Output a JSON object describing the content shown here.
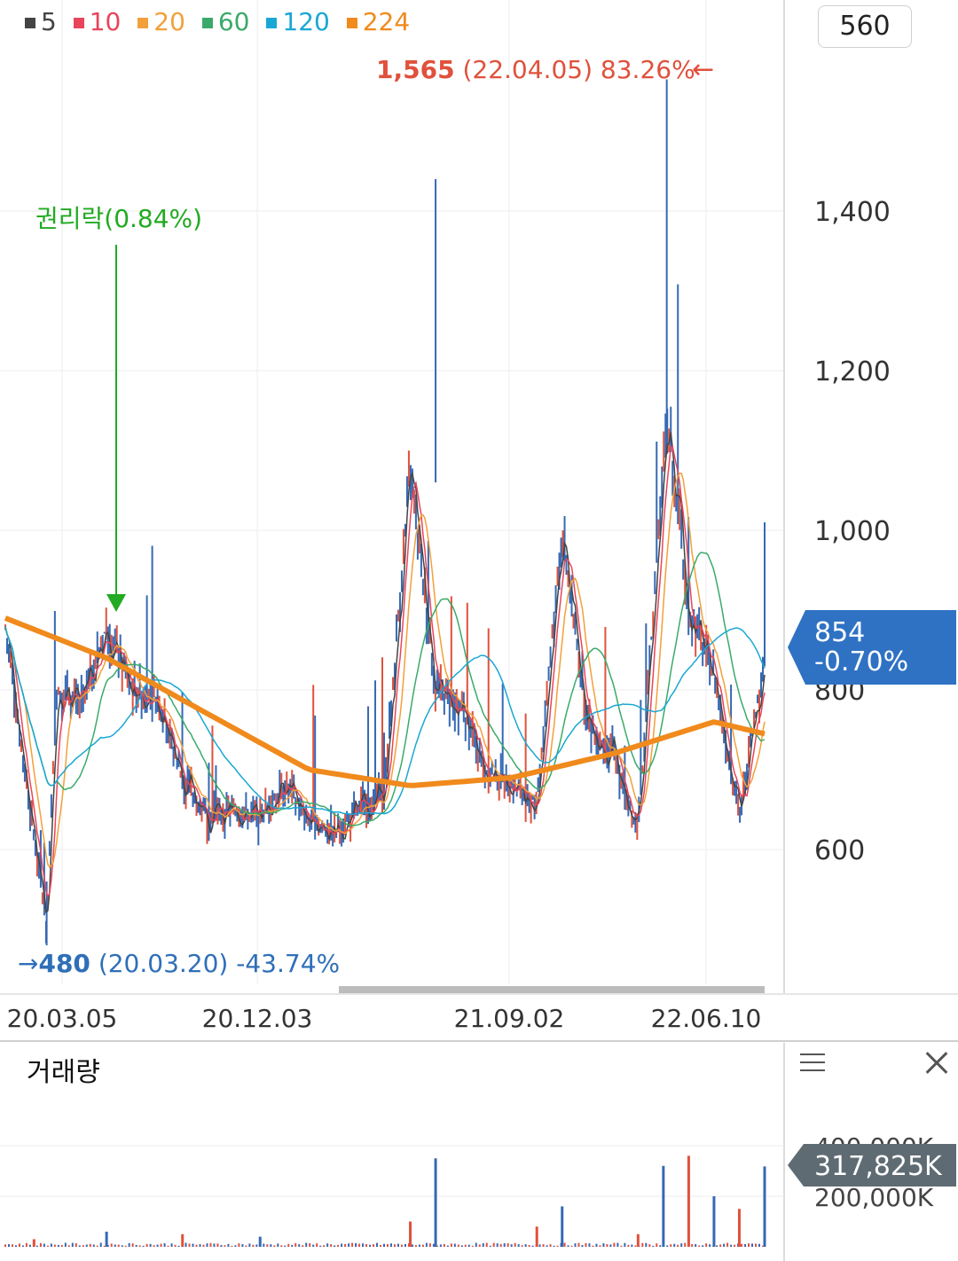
{
  "legend": [
    {
      "label": "5",
      "color": "#444444"
    },
    {
      "label": "10",
      "color": "#e8455b"
    },
    {
      "label": "20",
      "color": "#f2a03a"
    },
    {
      "label": "60",
      "color": "#3aaa6a"
    },
    {
      "label": "120",
      "color": "#1aa7d4"
    },
    {
      "label": "224",
      "color": "#f08a1c"
    }
  ],
  "zoom_value": "560",
  "annotations": {
    "high": {
      "price": "1,565",
      "rest": " (22.04.05) 83.26%",
      "arrow": "←"
    },
    "low": {
      "arrow": "→",
      "price": "480",
      "rest": " (20.03.20) -43.74%"
    },
    "event": {
      "label": "권리락(0.84%)"
    }
  },
  "current": {
    "price": "854",
    "change": "-0.70%"
  },
  "volume_panel": {
    "title": "거래량",
    "current": "317,825K",
    "menu_icon": "hamburger-icon",
    "close_icon": "close-icon"
  },
  "colors": {
    "candle_up": "#e0513c",
    "candle_down": "#3569b5",
    "current_badge": "#2f72c4",
    "volume_badge": "#5f6b73"
  },
  "chart_data": [
    {
      "type": "line",
      "x_ticks": [
        "20.03.05",
        "20.12.03",
        "21.09.02",
        "22.06.10"
      ],
      "y_ticks": [
        600,
        800,
        1000,
        1200,
        1400
      ],
      "ylim": [
        450,
        1600
      ],
      "series": [
        {
          "name": "5",
          "x": [
            "20.02",
            "20.03.20",
            "20.04",
            "20.05",
            "20.06",
            "20.07",
            "20.08",
            "20.09",
            "20.10",
            "20.11",
            "20.12",
            "21.01",
            "21.02",
            "21.03",
            "21.04",
            "21.05",
            "21.06",
            "21.07",
            "21.08",
            "21.09",
            "21.10",
            "21.11",
            "21.12",
            "22.01",
            "22.02",
            "22.03",
            "22.04.05",
            "22.05",
            "22.06",
            "22.07",
            "22.08"
          ],
          "values": [
            880,
            500,
            800,
            780,
            880,
            800,
            790,
            690,
            640,
            650,
            640,
            680,
            640,
            620,
            650,
            680,
            1080,
            800,
            780,
            700,
            680,
            660,
            1000,
            760,
            720,
            620,
            1150,
            900,
            820,
            640,
            840
          ]
        },
        {
          "name": "224",
          "x": [
            "20.02",
            "20.06",
            "20.10",
            "21.02",
            "21.06",
            "21.10",
            "22.02",
            "22.06",
            "22.08"
          ],
          "values": [
            890,
            840,
            770,
            700,
            680,
            690,
            720,
            760,
            745
          ]
        }
      ]
    },
    {
      "type": "bar",
      "yticks": [
        "200,000K",
        "400,000K"
      ],
      "x": [
        "20.03.05",
        "20.06",
        "20.09",
        "20.12.03",
        "21.06",
        "21.07",
        "21.11",
        "21.12",
        "22.03",
        "22.04",
        "22.05",
        "22.06",
        "22.07",
        "22.08"
      ],
      "values": [
        30000,
        60000,
        50000,
        40000,
        100000,
        350000,
        80000,
        160000,
        50000,
        320000,
        360000,
        200000,
        150000,
        317825
      ]
    }
  ]
}
